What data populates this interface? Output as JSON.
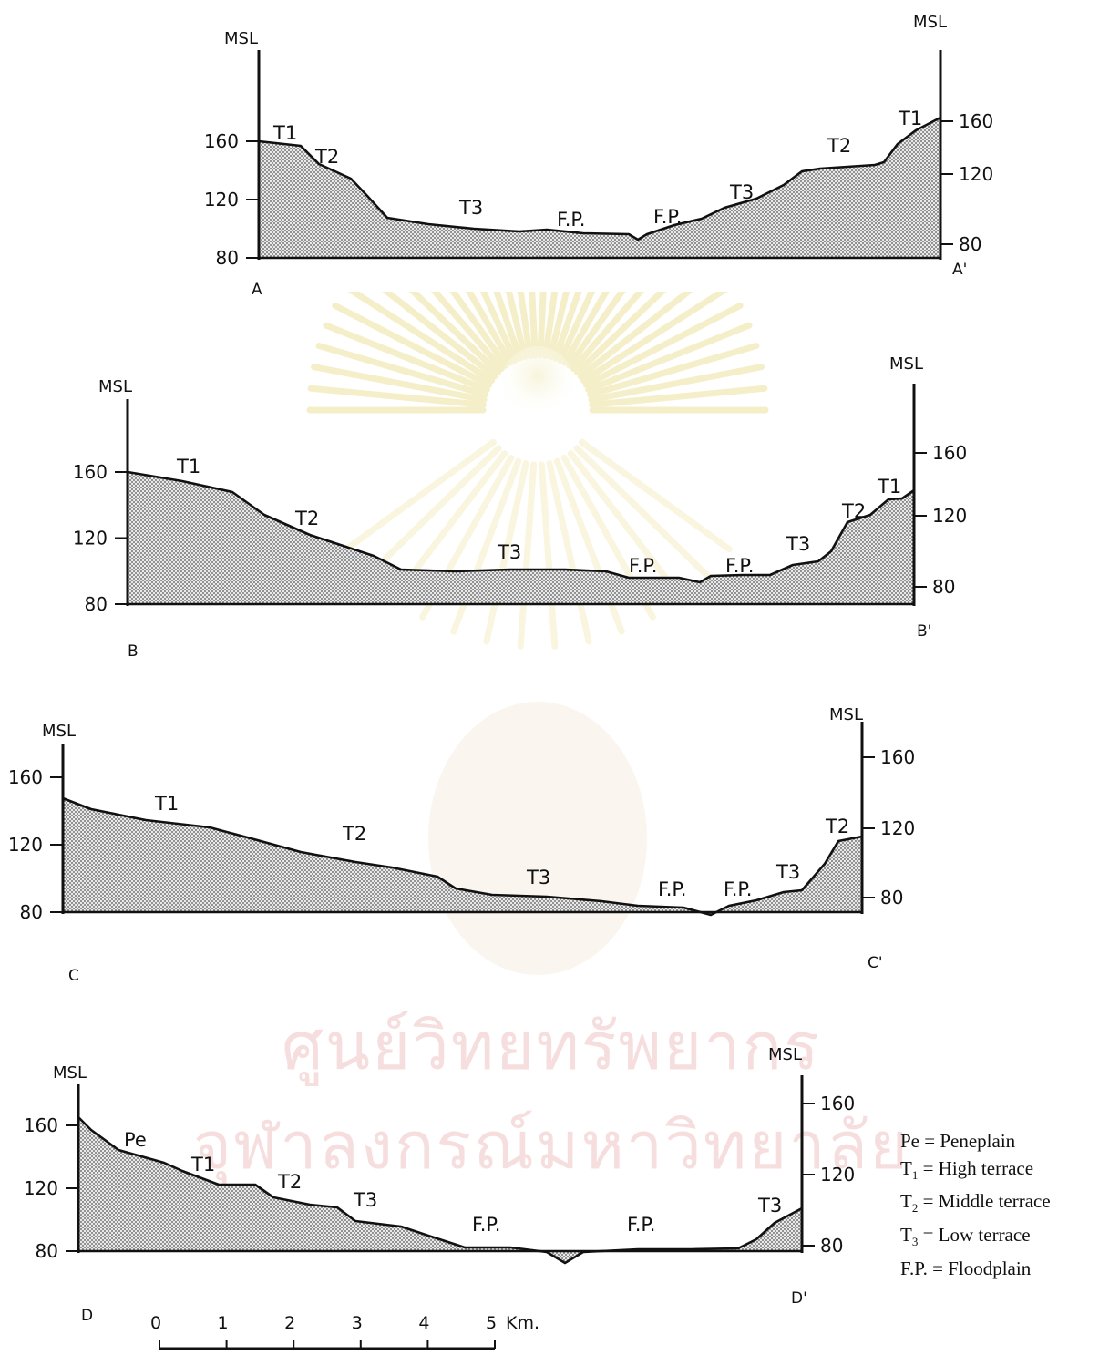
{
  "watermark": {
    "line1": "ศูนย์วิทยทรัพยากร",
    "line2": "จุฬาลงกรณ์มหาวิทยาลัย"
  },
  "axis_title": "MSL",
  "profiles": [
    {
      "start_label": "A",
      "end_label": "A'",
      "left_ticks": [
        "160",
        "120",
        "80"
      ],
      "right_ticks": [
        "160",
        "120",
        "80"
      ],
      "terrace_labels": [
        "T1",
        "T2",
        "T3",
        "F.P.",
        "F.P.",
        "T3",
        "T2",
        "T1"
      ]
    },
    {
      "start_label": "B",
      "end_label": "B'",
      "left_ticks": [
        "160",
        "120",
        "80"
      ],
      "right_ticks": [
        "160",
        "120",
        "80"
      ],
      "terrace_labels": [
        "T1",
        "T2",
        "T3",
        "F.P.",
        "F.P.",
        "T3",
        "T2",
        "T1"
      ]
    },
    {
      "start_label": "C",
      "end_label": "C'",
      "left_ticks": [
        "160",
        "120",
        "80"
      ],
      "right_ticks": [
        "160",
        "120",
        "80"
      ],
      "terrace_labels": [
        "T1",
        "T2",
        "T3",
        "F.P.",
        "F.P.",
        "T3",
        "T2"
      ]
    },
    {
      "start_label": "D",
      "end_label": "D'",
      "left_ticks": [
        "160",
        "120",
        "80"
      ],
      "right_ticks": [
        "160",
        "120",
        "80"
      ],
      "terrace_labels": [
        "Pe",
        "T1",
        "T2",
        "T3",
        "F.P.",
        "F.P.",
        "T3"
      ]
    }
  ],
  "scale_bar": {
    "ticks": [
      "0",
      "1",
      "2",
      "3",
      "4",
      "5"
    ],
    "unit": "Km."
  },
  "legend": [
    {
      "symbol": "Pe",
      "label": "Peneplain"
    },
    {
      "sub": "1",
      "label": "High terrace"
    },
    {
      "sub": "2",
      "label": "Middle terrace"
    },
    {
      "sub": "3",
      "label": "Low terrace"
    },
    {
      "symbol": "F.P.",
      "label": "Floodplain"
    }
  ]
}
